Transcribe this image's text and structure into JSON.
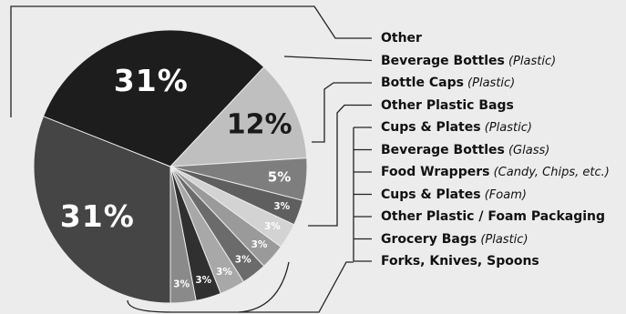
{
  "chart_data": {
    "type": "pie",
    "slices": [
      {
        "label": "Beverage Bottles",
        "qualifier": "(Plastic)",
        "value": 31,
        "value_label": "31%",
        "color": "#454545",
        "label_color": "#ffffff"
      },
      {
        "label": "Other",
        "qualifier": "",
        "value": 31,
        "value_label": "31%",
        "color": "#1d1d1d",
        "label_color": "#ffffff"
      },
      {
        "label": "Bottle Caps",
        "qualifier": "(Plastic)",
        "value": 12,
        "value_label": "12%",
        "color": "#bfbfbf",
        "label_color": "#1a1a1a"
      },
      {
        "label": "Other Plastic Bags",
        "qualifier": "",
        "value": 5,
        "value_label": "5%",
        "color": "#7e7e7e",
        "label_color": "#ffffff"
      },
      {
        "label": "Cups & Plates",
        "qualifier": "(Plastic)",
        "value": 3,
        "value_label": "3%",
        "color": "#5f5f5f",
        "label_color": "#ffffff"
      },
      {
        "label": "Beverage Bottles",
        "qualifier": "(Glass)",
        "value": 3,
        "value_label": "3%",
        "color": "#d3d3d3",
        "label_color": "#ffffff"
      },
      {
        "label": "Food Wrappers",
        "qualifier": "(Candy, Chips, etc.)",
        "value": 3,
        "value_label": "3%",
        "color": "#9a9a9a",
        "label_color": "#ffffff"
      },
      {
        "label": "Cups & Plates",
        "qualifier": "(Foam)",
        "value": 3,
        "value_label": "3%",
        "color": "#6b6b6b",
        "label_color": "#ffffff"
      },
      {
        "label": "Other Plastic / Foam Packaging",
        "qualifier": "",
        "value": 3,
        "value_label": "3%",
        "color": "#a8a8a8",
        "label_color": "#ffffff"
      },
      {
        "label": "Grocery Bags",
        "qualifier": "(Plastic)",
        "value": 3,
        "value_label": "3%",
        "color": "#303030",
        "label_color": "#ffffff"
      },
      {
        "label": "Forks, Knives, Spoons",
        "qualifier": "",
        "value": 3,
        "value_label": "3%",
        "color": "#8a8a8a",
        "label_color": "#ffffff"
      }
    ],
    "legend_position": "right",
    "legend_order": [
      1,
      0,
      2,
      3,
      4,
      5,
      6,
      7,
      8,
      9,
      10
    ]
  }
}
